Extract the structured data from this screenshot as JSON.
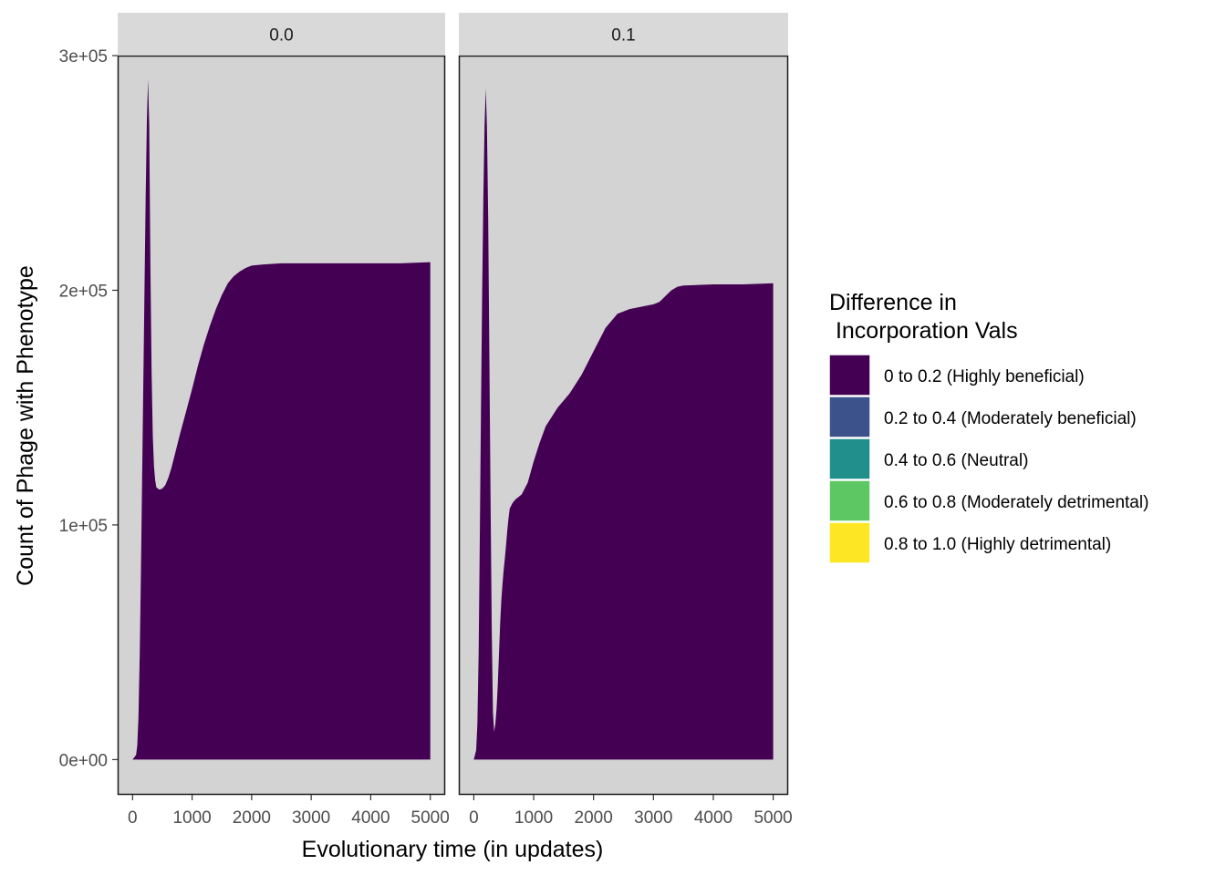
{
  "chart_data": {
    "type": "area",
    "xlabel": "Evolutionary time (in updates)",
    "ylabel": "Count of Phage with Phenotype",
    "xlim": [
      -250,
      5250
    ],
    "ylim": [
      -15000,
      300000
    ],
    "x_ticks": [
      0,
      1000,
      2000,
      3000,
      4000,
      5000
    ],
    "x_tick_labels": [
      "0",
      "1000",
      "2000",
      "3000",
      "4000",
      "5000"
    ],
    "y_ticks": [
      0,
      100000,
      200000,
      300000
    ],
    "y_tick_labels": [
      "0e+00",
      "1e+05",
      "2e+05",
      "3e+05"
    ],
    "grid": false,
    "legend_position": "right",
    "legend": {
      "title_lines": [
        "Difference in",
        " Incorporation Vals"
      ],
      "items": [
        {
          "label": "0 to 0.2 (Highly beneficial)",
          "color": "#440154"
        },
        {
          "label": "0.2 to 0.4 (Moderately beneficial)",
          "color": "#3B528B"
        },
        {
          "label": "0.4 to 0.6 (Neutral)",
          "color": "#21908C"
        },
        {
          "label": "0.6 to 0.8 (Moderately detrimental)",
          "color": "#5DC863"
        },
        {
          "label": "0.8 to 1.0 (Highly detrimental)",
          "color": "#FDE725"
        }
      ]
    },
    "panel_background": "#d3d3d3",
    "strip_background": "#d9d9d9",
    "facets": [
      {
        "label": "0.0",
        "series": [
          {
            "category": "0 to 0.2 (Highly beneficial)",
            "color": "#440154",
            "x": [
              0,
              60,
              80,
              100,
              120,
              140,
              160,
              180,
              200,
              220,
              240,
              260,
              280,
              300,
              320,
              340,
              360,
              380,
              400,
              450,
              500,
              550,
              600,
              650,
              700,
              800,
              900,
              1000,
              1100,
              1200,
              1300,
              1400,
              1500,
              1600,
              1700,
              1800,
              1900,
              2000,
              2200,
              2500,
              3000,
              3500,
              4000,
              4500,
              5000
            ],
            "y": [
              0,
              2000,
              6000,
              18000,
              45000,
              80000,
              120000,
              160000,
              200000,
              240000,
              272000,
              290000,
              270000,
              210000,
              165000,
              138000,
              125000,
              119000,
              116000,
              115000,
              115500,
              117000,
              120000,
              124000,
              129000,
              139000,
              148500,
              158000,
              168000,
              177000,
              185000,
              192000,
              198000,
              203000,
              206000,
              208000,
              209500,
              210500,
              211000,
              211500,
              211500,
              211500,
              211500,
              211500,
              212000
            ]
          }
        ]
      },
      {
        "label": "0.1",
        "series": [
          {
            "category": "0 to 0.2 (Highly beneficial)",
            "color": "#440154",
            "x": [
              0,
              20,
              40,
              60,
              80,
              100,
              120,
              140,
              160,
              180,
              200,
              220,
              240,
              260,
              280,
              300,
              320,
              340,
              360,
              380,
              400,
              420,
              440,
              460,
              480,
              500,
              520,
              540,
              560,
              580,
              600,
              650,
              700,
              800,
              900,
              1000,
              1100,
              1200,
              1400,
              1600,
              1800,
              2000,
              2200,
              2400,
              2600,
              2800,
              3000,
              3100,
              3200,
              3300,
              3400,
              3500,
              4000,
              4500,
              5000
            ],
            "y": [
              0,
              2000,
              4000,
              15000,
              45000,
              95000,
              150000,
              200000,
              240000,
              270000,
              286000,
              270000,
              230000,
              170000,
              110000,
              55000,
              20000,
              12000,
              15000,
              22000,
              32000,
              45000,
              58000,
              68000,
              75000,
              81000,
              86000,
              92000,
              98000,
              103000,
              107000,
              109500,
              111000,
              113000,
              118000,
              127000,
              135000,
              142000,
              150000,
              156000,
              164000,
              174000,
              184000,
              190000,
              192000,
              193000,
              194000,
              195000,
              197500,
              200000,
              201500,
              202000,
              202500,
              202500,
              203000
            ]
          }
        ]
      }
    ]
  }
}
